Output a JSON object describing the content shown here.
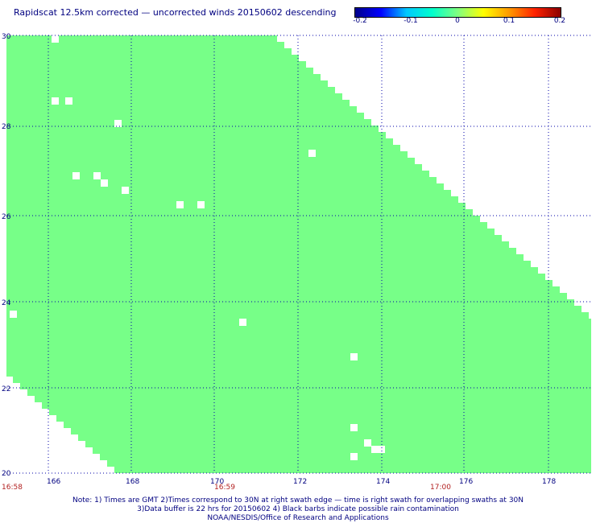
{
  "title": "Rapidscat 12.5km corrected — uncorrected winds 20150602 descending",
  "colorbar": {
    "ticks": [
      "-0.2",
      "-0.1",
      "0",
      "0.1",
      "0.2"
    ],
    "colors": [
      "#00008b",
      "#0000ff",
      "#00c8ff",
      "#00ffcc",
      "#80ff80",
      "#ffff00",
      "#ff9900",
      "#ff2200",
      "#8b0000"
    ]
  },
  "map": {
    "lat_ticks": [
      "30",
      "28",
      "26",
      "24",
      "22",
      "20"
    ],
    "lon_ticks": [
      "166",
      "168",
      "170",
      "172",
      "174",
      "176",
      "178"
    ],
    "times": [
      "16:58",
      "16:59",
      "17:00"
    ],
    "swath_color": "#77ff88",
    "grid_color": "#0000aa"
  },
  "notes": {
    "line1": "Note: 1) Times are GMT 2)Times correspond to 30N at right swath edge — time is right swath for overlapping swaths at 30N",
    "line2": "3)Data buffer is 22 hrs for 20150602 4) Black barbs indicate possible rain contamination",
    "line3": "NOAA/NESDIS/Office of Research and Applications"
  }
}
